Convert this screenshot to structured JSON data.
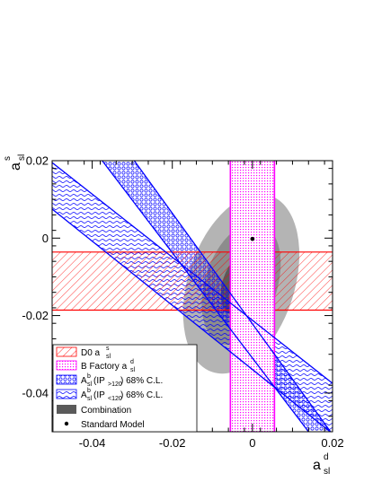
{
  "chart_data": {
    "type": "contour",
    "xlim": [
      -0.05,
      0.02
    ],
    "ylim": [
      -0.05,
      0.02
    ],
    "x_ticks": [
      -0.04,
      -0.02,
      0,
      0.02
    ],
    "y_ticks": [
      0.02,
      0,
      -0.02,
      -0.04
    ],
    "x_tick_labels": [
      "-0.04",
      "-0.02",
      "0",
      "0.02"
    ],
    "y_tick_labels": [
      "0.02",
      "0",
      "-0.02",
      "-0.04"
    ],
    "xlabel": {
      "base": "a",
      "sup": "d",
      "sub": "sl"
    },
    "ylabel": {
      "base": "a",
      "sup": "s",
      "sub": "sl"
    },
    "grid": false,
    "legend_position": "bottom-left",
    "d0_band": {
      "y": [
        -0.0186,
        -0.0036
      ],
      "color": "#ff0000"
    },
    "bfactory_band": {
      "x": [
        -0.0055,
        0.0055
      ],
      "color": "#ff00ff"
    },
    "ip_gt_band": {
      "lines": [
        {
          "p1": [
            -0.0375,
            0.02
          ],
          "p2": [
            0.014,
            -0.05
          ]
        },
        {
          "p1": [
            -0.0295,
            0.02
          ],
          "p2": [
            0.0195,
            -0.05
          ]
        }
      ],
      "color": "#0000ff"
    },
    "ip_lt_band": {
      "lines": [
        {
          "p1": [
            -0.05,
            0.0195
          ],
          "p2": [
            0.02,
            -0.0375
          ]
        },
        {
          "p1": [
            -0.05,
            0.0075
          ],
          "p2": [
            0.02,
            -0.0505
          ]
        }
      ],
      "color": "#0000ff"
    },
    "combination": {
      "center": [
        -0.0028,
        -0.0118
      ],
      "angle_deg": -72,
      "contours": [
        {
          "level": "outer",
          "a": 0.0232,
          "b": 0.0137,
          "color": "#b4b4b4"
        },
        {
          "level": "middle",
          "a": 0.0158,
          "b": 0.0093,
          "color": "#8c8c8c"
        },
        {
          "level": "inner",
          "a": 0.0081,
          "b": 0.0048,
          "color": "#5a5a5a"
        }
      ]
    },
    "standard_model": {
      "x": 0.0,
      "y": -0.0002
    },
    "legend": [
      {
        "key": "d0",
        "text": "D0 a",
        "sup": "s",
        "sub": "sl",
        "rest": "",
        "symbol": "hatch-red"
      },
      {
        "key": "bfactory",
        "text": "B Factory a",
        "sup": "d",
        "sub": "sl",
        "rest": "",
        "symbol": "hatch-magenta"
      },
      {
        "key": "ip_gt",
        "text": "A",
        "sup": "b",
        "sub": "sl",
        "mid": "(IP",
        "sub2": ">120",
        "rest": ") 68% C.L.",
        "symbol": "hatch-blue-circle"
      },
      {
        "key": "ip_lt",
        "text": "A",
        "sup": "b",
        "sub": "sl",
        "mid": "(IP",
        "sub2": "<120",
        "rest": ") 68% C.L.",
        "symbol": "hatch-blue-wave"
      },
      {
        "key": "combination",
        "text": "Combination",
        "symbol": "fill-gray"
      },
      {
        "key": "sm",
        "text": "Standard Model",
        "symbol": "dot"
      }
    ]
  }
}
